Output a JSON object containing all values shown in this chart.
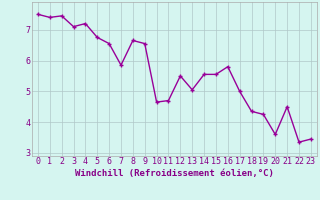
{
  "x": [
    0,
    1,
    2,
    3,
    4,
    5,
    6,
    7,
    8,
    9,
    10,
    11,
    12,
    13,
    14,
    15,
    16,
    17,
    18,
    19,
    20,
    21,
    22,
    23
  ],
  "y": [
    7.5,
    7.4,
    7.45,
    7.1,
    7.2,
    6.75,
    6.55,
    5.85,
    6.65,
    6.55,
    4.65,
    4.7,
    5.5,
    5.05,
    5.55,
    5.55,
    5.8,
    5.0,
    4.35,
    4.25,
    3.6,
    4.5,
    3.35,
    3.45
  ],
  "line_color": "#990099",
  "marker": "+",
  "marker_size": 3,
  "bg_color": "#d5f5f0",
  "grid_color": "#b0c8c8",
  "xlabel": "Windchill (Refroidissement éolien,°C)",
  "ylabel": "",
  "ylim": [
    2.9,
    7.9
  ],
  "xlim": [
    -0.5,
    23.5
  ],
  "yticks": [
    3,
    4,
    5,
    6,
    7
  ],
  "xticks": [
    0,
    1,
    2,
    3,
    4,
    5,
    6,
    7,
    8,
    9,
    10,
    11,
    12,
    13,
    14,
    15,
    16,
    17,
    18,
    19,
    20,
    21,
    22,
    23
  ],
  "xlabel_fontsize": 6.5,
  "tick_fontsize": 6,
  "line_width": 1.0,
  "text_color": "#880088"
}
